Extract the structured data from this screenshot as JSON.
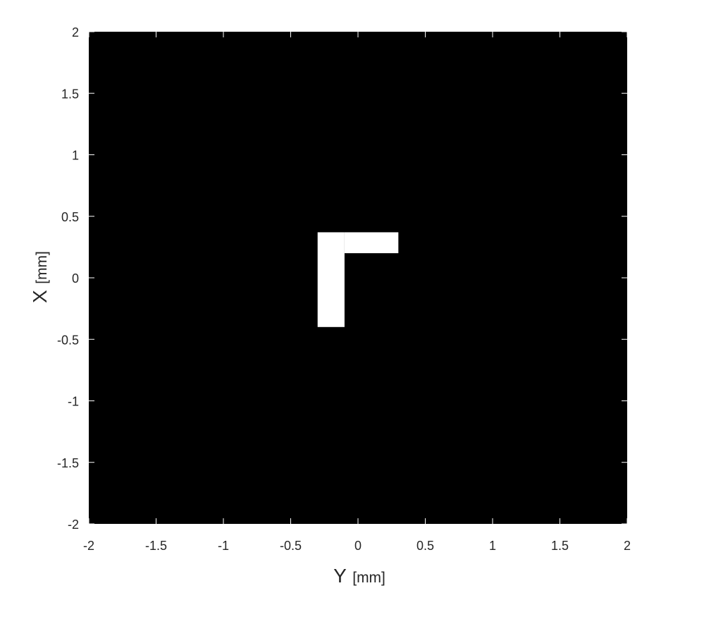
{
  "chart_data": {
    "type": "heatmap",
    "title": "",
    "xlabel": {
      "symbol": "Y",
      "unit": "[mm]"
    },
    "ylabel": {
      "symbol": "X",
      "unit": "[mm]"
    },
    "xlim": [
      -2,
      2
    ],
    "ylim": [
      -2,
      2
    ],
    "xticks": [
      -2,
      -1.5,
      -1,
      -0.5,
      0,
      0.5,
      1,
      1.5,
      2
    ],
    "yticks": [
      -2,
      -1.5,
      -1,
      -0.5,
      0,
      0.5,
      1,
      1.5,
      2
    ],
    "xtick_labels": [
      "-2",
      "-1.5",
      "-1",
      "-0.5",
      "0",
      "0.5",
      "1",
      "1.5",
      "2"
    ],
    "ytick_labels": [
      "-2",
      "-1.5",
      "-1",
      "-0.5",
      "0",
      "0.5",
      "1",
      "1.5",
      "2"
    ],
    "grid": false,
    "legend": "none",
    "background_color": "#000000",
    "shape_color": "#ffffff",
    "shape": {
      "name": "L-shape",
      "regions": [
        {
          "x_range": [
            -0.3,
            -0.1
          ],
          "y_range": [
            -0.4,
            0.37
          ]
        },
        {
          "x_range": [
            -0.1,
            0.3
          ],
          "y_range": [
            0.2,
            0.37
          ]
        }
      ]
    }
  }
}
